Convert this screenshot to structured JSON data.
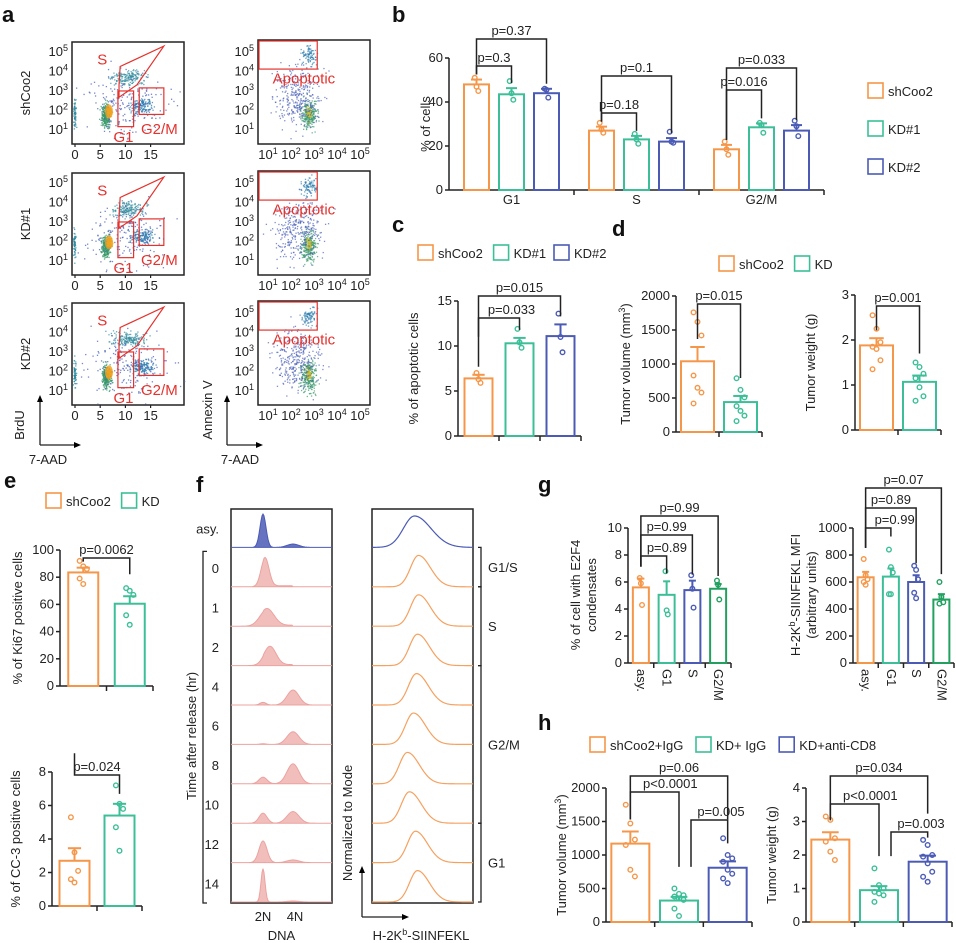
{
  "colors": {
    "shCoo2": "#f5974a",
    "KD1": "#3cbf98",
    "KD2": "#4b5bb5",
    "G2M": "#22a060",
    "red_gate": "#e5322d",
    "flow_hist": "#eba3a0",
    "flow_async": "#4b5bb5",
    "flow_line": "#f5a160"
  },
  "panel_labels": {
    "a": "a",
    "b": "b",
    "c": "c",
    "d": "d",
    "e": "e",
    "f": "f",
    "g": "g",
    "h": "h"
  },
  "chart_data": [
    {
      "id": "a",
      "type": "scatter",
      "title": "Flow cytometry cell cycle and apoptosis",
      "rows": [
        "shCoo2",
        "KD#1",
        "KD#2"
      ],
      "left": {
        "xlabel": "7-AAD",
        "ylabel": "BrdU",
        "xticks": [
          "0",
          "5",
          "10",
          "15"
        ],
        "yticks": [
          "10^1",
          "10^2",
          "10^3",
          "10^4",
          "10^5"
        ],
        "gates": [
          "S",
          "G1",
          "G2/M"
        ]
      },
      "right": {
        "xlabel": "7-AAD",
        "ylabel": "Annexin V",
        "xticks": [
          "10^1",
          "10^2",
          "10^3",
          "10^4",
          "10^5"
        ],
        "yticks": [
          "10^1",
          "10^2",
          "10^3",
          "10^4",
          "10^5"
        ],
        "gates": [
          "Apoptotic"
        ]
      }
    },
    {
      "id": "b",
      "type": "bar",
      "ylabel": "% of cells",
      "ylim": [
        0,
        60
      ],
      "yticks": [
        0,
        20,
        40,
        60
      ],
      "categories": [
        "G1",
        "S",
        "G2/M"
      ],
      "legend": [
        "shCoo2",
        "KD#1",
        "KD#2"
      ],
      "legend_position": "right",
      "series": [
        {
          "name": "shCoo2",
          "values": [
            48,
            27,
            18.5
          ],
          "err": [
            2.2,
            1.8,
            2
          ],
          "points": [
            [
              51,
              47,
              45
            ],
            [
              30.5,
              27.5,
              26
            ],
            [
              22,
              18.5,
              16
            ]
          ]
        },
        {
          "name": "KD#1",
          "values": [
            43.5,
            23,
            28.5
          ],
          "err": [
            2.8,
            1.6,
            1.8
          ],
          "points": [
            [
              49.5,
              44,
              41
            ],
            [
              25.5,
              23,
              21
            ],
            [
              30.5,
              29.5,
              26
            ]
          ]
        },
        {
          "name": "KD#2",
          "values": [
            44,
            22,
            27
          ],
          "err": [
            2,
            1.6,
            2.5
          ],
          "points": [
            [
              46,
              45.5,
              42
            ],
            [
              26.5,
              22,
              21.5
            ],
            [
              31.5,
              29,
              24.5
            ]
          ]
        }
      ],
      "comparisons": [
        {
          "text": "p=0.37",
          "cat": 0,
          "from": 0,
          "to": 2,
          "level": 2
        },
        {
          "text": "p=0.3",
          "cat": 0,
          "from": 0,
          "to": 1,
          "level": 1
        },
        {
          "text": "p=0.1",
          "cat": 1,
          "from": 0,
          "to": 2,
          "level": 2
        },
        {
          "text": "p=0.18",
          "cat": 1,
          "from": 0,
          "to": 1,
          "level": 1
        },
        {
          "text": "p=0.033",
          "cat": 2,
          "from": 0,
          "to": 2,
          "level": 2
        },
        {
          "text": "p=0.016",
          "cat": 2,
          "from": 0,
          "to": 1,
          "level": 1
        }
      ]
    },
    {
      "id": "c",
      "type": "bar",
      "ylabel": "% of apoptotic cells",
      "ylim": [
        0,
        15
      ],
      "yticks": [
        0,
        5,
        10,
        15
      ],
      "categories": [
        "shCoo2",
        "KD#1",
        "KD#2"
      ],
      "legend": [
        "shCoo2",
        "KD#1",
        "KD#2"
      ],
      "legend_position": "top",
      "values": [
        6.4,
        10.3,
        11.1
      ],
      "err": [
        0.4,
        0.6,
        1.3
      ],
      "points": [
        [
          7,
          6.3,
          5.9
        ],
        [
          11.9,
          10.4,
          9.8
        ],
        [
          13.6,
          11,
          9.3
        ]
      ],
      "comparisons": [
        {
          "text": "p=0.015",
          "from": 0,
          "to": 2,
          "level": 2
        },
        {
          "text": "p=0.033",
          "from": 0,
          "to": 1,
          "level": 1
        }
      ]
    },
    {
      "id": "d1",
      "type": "bar",
      "ylabel": "Tumor volume (mm3)",
      "ylim": [
        0,
        2000
      ],
      "yticks": [
        0,
        500,
        1000,
        1500,
        2000
      ],
      "categories": [
        "shCoo2",
        "KD"
      ],
      "legend": [
        "shCoo2",
        "KD"
      ],
      "values": [
        1040,
        440
      ],
      "err": [
        210,
        90
      ],
      "points": [
        [
          1760,
          1620,
          1420,
          830,
          650,
          580,
          420
        ],
        [
          790,
          620,
          510,
          380,
          310,
          240,
          160
        ]
      ],
      "comparisons": [
        {
          "text": "p=0.015",
          "from": 0,
          "to": 1,
          "level": 1
        }
      ]
    },
    {
      "id": "d2",
      "type": "bar",
      "ylabel": "Tumor weight (g)",
      "ylim": [
        0,
        3
      ],
      "yticks": [
        0,
        1,
        2,
        3
      ],
      "categories": [
        "shCoo2",
        "KD"
      ],
      "values": [
        1.88,
        1.07
      ],
      "err": [
        0.16,
        0.14
      ],
      "points": [
        [
          2.55,
          2.25,
          1.95,
          1.85,
          1.8,
          1.55,
          1.35
        ],
        [
          1.5,
          1.4,
          1.25,
          1.15,
          0.95,
          0.75,
          0.65
        ]
      ],
      "comparisons": [
        {
          "text": "p=0.001",
          "from": 0,
          "to": 1,
          "level": 1
        }
      ]
    },
    {
      "id": "e1",
      "type": "bar",
      "ylabel": "% of Ki67 positive cells",
      "ylim": [
        0,
        100
      ],
      "yticks": [
        0,
        20,
        40,
        60,
        80,
        100
      ],
      "categories": [
        "shCoo2",
        "KD"
      ],
      "legend": [
        "shCoo2",
        "KD"
      ],
      "values": [
        83.5,
        60.5
      ],
      "err": [
        3.5,
        5.5
      ],
      "points": [
        [
          92,
          88,
          86,
          79,
          75
        ],
        [
          72,
          70,
          67,
          52,
          45
        ]
      ],
      "comparisons": [
        {
          "text": "p=0.0062",
          "from": 0,
          "to": 1,
          "level": 1
        }
      ]
    },
    {
      "id": "e2",
      "type": "bar",
      "ylabel": "% of CC-3 positive cells",
      "ylim": [
        0,
        8
      ],
      "yticks": [
        0,
        2,
        4,
        6,
        8
      ],
      "categories": [
        "shCoo2",
        "KD"
      ],
      "values": [
        2.7,
        5.4
      ],
      "err": [
        0.75,
        0.7
      ],
      "points": [
        [
          5.3,
          3.2,
          2.1,
          1.6,
          1.4
        ],
        [
          7.2,
          6.1,
          5.8,
          4.7,
          3.3
        ]
      ],
      "comparisons": [
        {
          "text": "p=0.024",
          "from": 0,
          "to": 1,
          "level": 1
        }
      ]
    },
    {
      "id": "f",
      "type": "area",
      "left": {
        "xlabel": "DNA",
        "xticks": [
          "2N",
          "4N"
        ],
        "ylabel": "Time after release (hr)",
        "rows": [
          "asy.",
          "0",
          "1",
          "2",
          "4",
          "6",
          "8",
          "10",
          "12",
          "14"
        ]
      },
      "right": {
        "xlabel": "H-2Kb-SIINFEKL",
        "ylabel": "Normalized to Mode",
        "phases": [
          "G1/S",
          "S",
          "G2/M",
          "G1"
        ]
      },
      "dna_profiles": [
        {
          "row": "asy.",
          "p2n": 1.0,
          "p4n": 0.1
        },
        {
          "row": "0",
          "p2n": 0.85,
          "p4n": 0.0
        },
        {
          "row": "1",
          "p2n": 0.5,
          "p4n": 0.0
        },
        {
          "row": "2",
          "p2n": 0.55,
          "p4n": 0.0
        },
        {
          "row": "4",
          "p2n": 0.08,
          "p4n": 0.45
        },
        {
          "row": "6",
          "p2n": 0.02,
          "p4n": 0.38
        },
        {
          "row": "8",
          "p2n": 0.2,
          "p4n": 0.6
        },
        {
          "row": "10",
          "p2n": 0.3,
          "p4n": 0.35
        },
        {
          "row": "12",
          "p2n": 0.65,
          "p4n": 0.08
        },
        {
          "row": "14",
          "p2n": 1.0,
          "p4n": 0.03
        }
      ],
      "mhc_peaks": [
        0.42,
        0.46,
        0.46,
        0.45,
        0.44,
        0.41,
        0.35,
        0.37,
        0.43,
        0.45
      ]
    },
    {
      "id": "g1",
      "type": "bar",
      "ylabel": "% of cell with E2F4 condensates",
      "ylim": [
        0,
        10
      ],
      "yticks": [
        0,
        2,
        4,
        6,
        8,
        10
      ],
      "categories": [
        "asy.",
        "G1",
        "S",
        "G2/M"
      ],
      "values": [
        5.6,
        5.05,
        5.4,
        5.5
      ],
      "err": [
        0.65,
        1.0,
        0.7,
        0.35
      ],
      "points": [
        [
          6.3,
          5.9,
          4.3
        ],
        [
          6.8,
          3.9,
          3.6
        ],
        [
          6.5,
          5.5,
          4.1
        ],
        [
          6.1,
          5.8,
          4.7
        ]
      ],
      "comparisons": [
        {
          "text": "p=0.99",
          "from": 0,
          "to": 3,
          "level": 3
        },
        {
          "text": "p=0.99",
          "from": 0,
          "to": 2,
          "level": 2
        },
        {
          "text": "p=0.89",
          "from": 0,
          "to": 1,
          "level": 1
        }
      ]
    },
    {
      "id": "g2",
      "type": "bar",
      "ylabel": "H-2Kb-SIINFEKL MFI (arbitrary units)",
      "ylim": [
        0,
        1000
      ],
      "yticks": [
        0,
        200,
        400,
        600,
        800,
        1000
      ],
      "categories": [
        "asy.",
        "G1",
        "S",
        "G2/M"
      ],
      "values": [
        635,
        640,
        600,
        470
      ],
      "err": [
        40,
        60,
        50,
        40
      ],
      "points": [
        [
          770,
          650,
          620,
          600,
          580
        ],
        [
          840,
          710,
          670,
          510,
          510
        ],
        [
          720,
          690,
          620,
          520,
          480
        ],
        [
          600,
          490,
          450,
          440
        ]
      ],
      "comparisons": [
        {
          "text": "p=0.07",
          "from": 0,
          "to": 3,
          "level": 3
        },
        {
          "text": "p=0.89",
          "from": 0,
          "to": 2,
          "level": 2
        },
        {
          "text": "p=0.99",
          "from": 0,
          "to": 1,
          "level": 1
        }
      ]
    },
    {
      "id": "h1",
      "type": "bar",
      "ylabel": "Tumor volume (mm3)",
      "ylim": [
        0,
        2000
      ],
      "yticks": [
        0,
        500,
        1000,
        1500,
        2000
      ],
      "categories": [
        "shCoo2+IgG",
        "KD+ IgG",
        "KD+anti-CD8"
      ],
      "legend": [
        "shCoo2+IgG",
        "KD+ IgG",
        "KD+anti-CD8"
      ],
      "values": [
        1170,
        320,
        810
      ],
      "err": [
        180,
        55,
        95
      ],
      "points": [
        [
          1750,
          1470,
          1230,
          1150,
          780,
          680
        ],
        [
          500,
          420,
          400,
          380,
          350,
          330,
          200,
          90
        ],
        [
          1250,
          1000,
          950,
          900,
          780,
          720,
          650,
          580
        ]
      ],
      "comparisons": [
        {
          "text": "p=0.06",
          "from": 0,
          "to": 2,
          "level": 3
        },
        {
          "text": "p<0.0001",
          "from": 0,
          "to": 1,
          "level": 2
        },
        {
          "text": "p=0.005",
          "from": 1,
          "to": 2,
          "level": 1
        }
      ]
    },
    {
      "id": "h2",
      "type": "bar",
      "ylabel": "Tumor weight (g)",
      "ylim": [
        0,
        4
      ],
      "yticks": [
        0,
        1,
        2,
        3,
        4
      ],
      "categories": [
        "shCoo2+IgG",
        "KD+ IgG",
        "KD+anti-CD8"
      ],
      "values": [
        2.46,
        0.95,
        1.8
      ],
      "err": [
        0.22,
        0.12,
        0.18
      ],
      "points": [
        [
          3.15,
          3.05,
          2.5,
          2.4,
          2.1,
          1.85
        ],
        [
          1.6,
          1.1,
          1.0,
          0.9,
          0.85,
          0.8,
          0.6
        ],
        [
          2.45,
          2.3,
          2.0,
          1.95,
          1.75,
          1.5,
          1.35,
          1.2
        ]
      ],
      "comparisons": [
        {
          "text": "p=0.034",
          "from": 0,
          "to": 2,
          "level": 3
        },
        {
          "text": "p<0.0001",
          "from": 0,
          "to": 1,
          "level": 2
        },
        {
          "text": "p=0.003",
          "from": 1,
          "to": 2,
          "level": 1
        }
      ]
    }
  ]
}
